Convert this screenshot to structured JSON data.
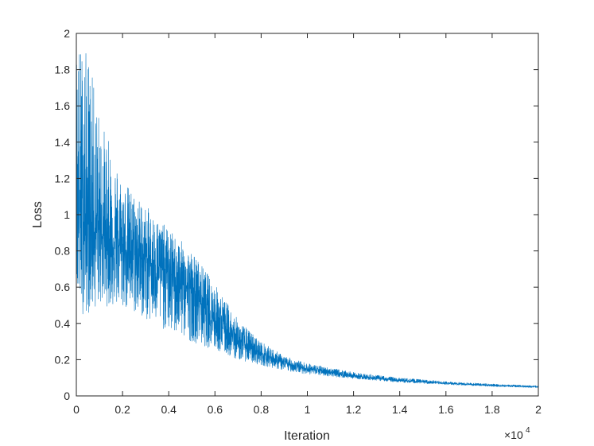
{
  "chart_data": {
    "type": "line",
    "title": "",
    "xlabel": "Iteration",
    "ylabel": "Loss",
    "x_multiplier_label": "×10",
    "x_multiplier_exponent": "4",
    "xlim": [
      0,
      2
    ],
    "ylim": [
      0,
      2
    ],
    "x_ticks": [
      "0",
      "0.2",
      "0.4",
      "0.6",
      "0.8",
      "1",
      "1.2",
      "1.4",
      "1.6",
      "1.8",
      "2"
    ],
    "y_ticks": [
      "0",
      "0.2",
      "0.4",
      "0.6",
      "0.8",
      "1",
      "1.2",
      "1.4",
      "1.6",
      "1.8",
      "2"
    ],
    "grid": false,
    "box": true,
    "series": [
      {
        "color": "#0072BD",
        "description_points": [
          {
            "x": 0.0,
            "center": 1.05,
            "upper": 2.0,
            "lower": 0.55
          },
          {
            "x": 0.02,
            "center": 1.0,
            "upper": 1.95,
            "lower": 0.45
          },
          {
            "x": 0.05,
            "center": 0.95,
            "upper": 1.9,
            "lower": 0.45
          },
          {
            "x": 0.1,
            "center": 0.9,
            "upper": 1.55,
            "lower": 0.5
          },
          {
            "x": 0.2,
            "center": 0.82,
            "upper": 1.2,
            "lower": 0.48
          },
          {
            "x": 0.3,
            "center": 0.75,
            "upper": 1.05,
            "lower": 0.42
          },
          {
            "x": 0.4,
            "center": 0.68,
            "upper": 0.92,
            "lower": 0.35
          },
          {
            "x": 0.5,
            "center": 0.58,
            "upper": 0.8,
            "lower": 0.3
          },
          {
            "x": 0.6,
            "center": 0.42,
            "upper": 0.62,
            "lower": 0.25
          },
          {
            "x": 0.7,
            "center": 0.3,
            "upper": 0.42,
            "lower": 0.2
          },
          {
            "x": 0.8,
            "center": 0.23,
            "upper": 0.3,
            "lower": 0.17
          },
          {
            "x": 0.9,
            "center": 0.18,
            "upper": 0.22,
            "lower": 0.14
          },
          {
            "x": 1.0,
            "center": 0.15,
            "upper": 0.18,
            "lower": 0.12
          },
          {
            "x": 1.2,
            "center": 0.11,
            "upper": 0.13,
            "lower": 0.095
          },
          {
            "x": 1.4,
            "center": 0.085,
            "upper": 0.1,
            "lower": 0.075
          },
          {
            "x": 1.6,
            "center": 0.07,
            "upper": 0.08,
            "lower": 0.062
          },
          {
            "x": 1.8,
            "center": 0.058,
            "upper": 0.066,
            "lower": 0.052
          },
          {
            "x": 2.0,
            "center": 0.05,
            "upper": 0.056,
            "lower": 0.045
          }
        ]
      }
    ]
  }
}
